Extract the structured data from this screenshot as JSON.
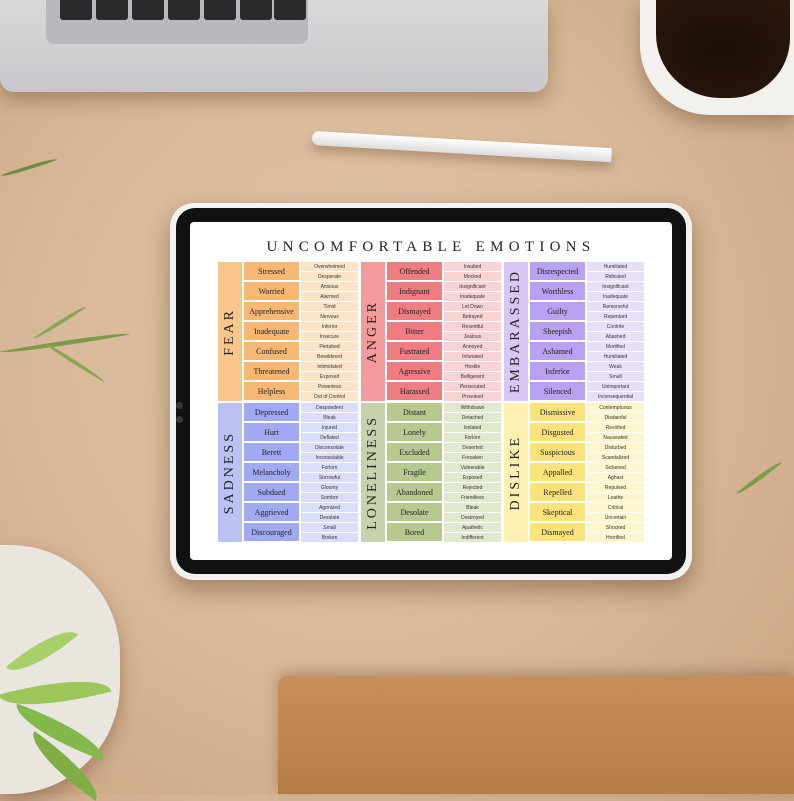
{
  "title": "UNCOMFORTABLE EMOTIONS",
  "groups": [
    {
      "name": "FEAR",
      "colors": {
        "label": "#f9c58a",
        "primary": "#f7b873",
        "secondary": "#fde4c8"
      },
      "rows": [
        [
          "Stressed",
          "Overwhelmed",
          "Desperate"
        ],
        [
          "Worried",
          "Anxious",
          "Alarmed"
        ],
        [
          "Apprehensive",
          "Timid",
          "Nervous"
        ],
        [
          "Inadequate",
          "Inferior",
          "Insecure"
        ],
        [
          "Confused",
          "Pertubed",
          "Bewildered"
        ],
        [
          "Threatened",
          "Intimidated",
          "Exposed"
        ],
        [
          "Helpless",
          "Powerless",
          "Out of Control"
        ]
      ]
    },
    {
      "name": "ANGER",
      "colors": {
        "label": "#f49a9c",
        "primary": "#ef7c81",
        "secondary": "#fbd2d3"
      },
      "rows": [
        [
          "Offended",
          "Insulted",
          "Mocked"
        ],
        [
          "Indignant",
          "Insignificant",
          "Inadequate"
        ],
        [
          "Dismayed",
          "Let Down",
          "Betrayed"
        ],
        [
          "Bitter",
          "Resentful",
          "Jealous"
        ],
        [
          "Fustrated",
          "Annoyed",
          "Infuriated"
        ],
        [
          "Agressive",
          "Hostile",
          "Belligerent"
        ],
        [
          "Harassed",
          "Persecuted",
          "Provoked"
        ]
      ]
    },
    {
      "name": "EMBARASSED",
      "colors": {
        "label": "#d8c7f5",
        "primary": "#b9a0f0",
        "secondary": "#e9dffb"
      },
      "rows": [
        [
          "Disrespected",
          "Humiliated",
          "Ridiculed"
        ],
        [
          "Worthless",
          "Insignificant",
          "Inadequate"
        ],
        [
          "Guilty",
          "Remorseful",
          "Repentant"
        ],
        [
          "Sheepish",
          "Contrite",
          "Abashed"
        ],
        [
          "Ashamed",
          "Mortified",
          "Humiliated"
        ],
        [
          "Inferior",
          "Weak",
          "Small"
        ],
        [
          "Silenced",
          "Unimportant",
          "Inconsequential"
        ]
      ]
    },
    {
      "name": "SADNESS",
      "colors": {
        "label": "#bac1f5",
        "primary": "#9faaf2",
        "secondary": "#dadefa"
      },
      "rows": [
        [
          "Depressed",
          "Despondent",
          "Bleak"
        ],
        [
          "Hurt",
          "Injured",
          "Deflated"
        ],
        [
          "Berett",
          "Disconsolate",
          "Inconsolable"
        ],
        [
          "Melancholy",
          "Forlorn",
          "Sorrowful"
        ],
        [
          "Subdued",
          "Gloomy",
          "Sombre"
        ],
        [
          "Aggrieved",
          "Agonized",
          "Desolate"
        ],
        [
          "Discouraged",
          "Small",
          "Broken"
        ]
      ]
    },
    {
      "name": "LONELINESS",
      "colors": {
        "label": "#c6d2ae",
        "primary": "#b7c890",
        "secondary": "#e0e8cd"
      },
      "rows": [
        [
          "Distant",
          "Withdrawn",
          "Detached"
        ],
        [
          "Lonely",
          "Isolated",
          "Forlorn"
        ],
        [
          "Excluded",
          "Deserted",
          "Forsaken"
        ],
        [
          "Fragile",
          "Vulnerable",
          "Exposed"
        ],
        [
          "Abandoned",
          "Rejected",
          "Friendless"
        ],
        [
          "Desolate",
          "Bleak",
          "Destroyed"
        ],
        [
          "Bored",
          "Apathetic",
          "Indifferent"
        ]
      ]
    },
    {
      "name": "DISLIKE",
      "colors": {
        "label": "#fdf0b0",
        "primary": "#fbe37c",
        "secondary": "#fdf5cd"
      },
      "rows": [
        [
          "Dismissive",
          "Contemptuous",
          "Disdainful"
        ],
        [
          "Disgusted",
          "Revolted",
          "Nauseated"
        ],
        [
          "Suspicious",
          "Disturbed",
          "Scandalized"
        ],
        [
          "Appalled",
          "Sickened",
          "Aghast"
        ],
        [
          "Repelled",
          "Repulsed",
          "Loathe"
        ],
        [
          "Skeptical",
          "Critical",
          "Uncertain"
        ],
        [
          "Dismayed",
          "Shocked",
          "Horrified"
        ]
      ]
    }
  ]
}
